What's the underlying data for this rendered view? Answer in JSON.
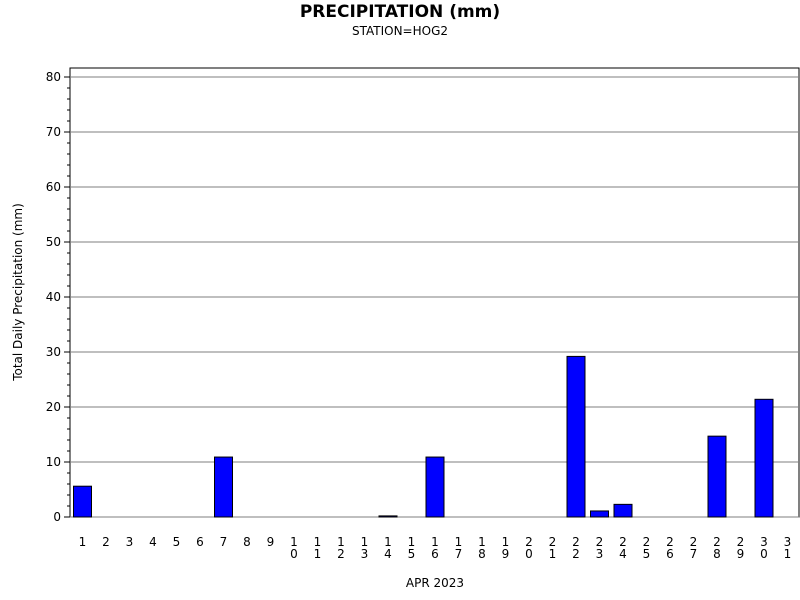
{
  "chart_data": {
    "type": "bar",
    "title": "PRECIPITATION (mm)",
    "subtitle": "STATION=HOG2",
    "xlabel": "APR 2023",
    "ylabel": "Total Daily Precipitation (mm)",
    "ylim": [
      0,
      80
    ],
    "yticks": [
      "0",
      "10",
      "20",
      "30",
      "40",
      "50",
      "60",
      "70",
      "80"
    ],
    "grid": true,
    "categories": [
      "1",
      "2",
      "3",
      "4",
      "5",
      "6",
      "7",
      "8",
      "9",
      "10",
      "11",
      "12",
      "13",
      "14",
      "15",
      "16",
      "17",
      "18",
      "19",
      "20",
      "21",
      "22",
      "23",
      "24",
      "25",
      "26",
      "27",
      "28",
      "29",
      "30",
      "31"
    ],
    "values": [
      5.6,
      0,
      0,
      0,
      0,
      0,
      10.9,
      0,
      0,
      0,
      0,
      0,
      0,
      0.2,
      0,
      10.9,
      0,
      0,
      0,
      0,
      0,
      29.2,
      1.1,
      2.3,
      0,
      0,
      0,
      14.7,
      0,
      21.4,
      0
    ],
    "bar_color": "#0000ff"
  }
}
